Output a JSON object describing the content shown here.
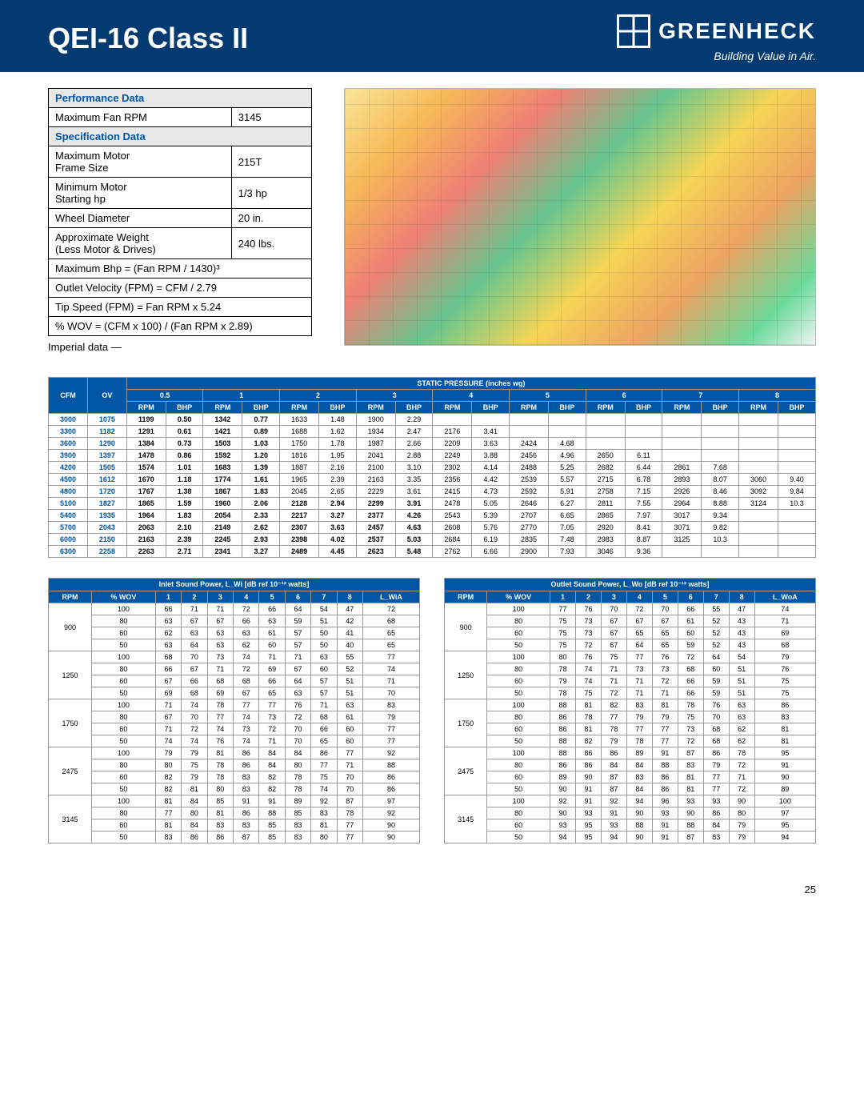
{
  "header": {
    "title": "QEI-16 Class II",
    "brand_name": "GREENHECK",
    "brand_tag": "Building Value in Air."
  },
  "spec": {
    "perf_hdr": "Performance Data",
    "spec_hdr": "Specification Data",
    "rows_perf": [
      {
        "label": "Maximum Fan RPM",
        "value": "3145"
      }
    ],
    "rows_spec": [
      {
        "label": "Maximum Motor\nFrame Size",
        "value": "215T"
      },
      {
        "label": "Minimum Motor\nStarting hp",
        "value": "1/3 hp"
      },
      {
        "label": "Wheel Diameter",
        "value": "20 in."
      },
      {
        "label": "Approximate Weight\n(Less Motor & Drives)",
        "value": "240 lbs."
      }
    ],
    "formulas": [
      "Maximum Bhp = (Fan RPM / 1430)³",
      "Outlet Velocity (FPM) = CFM / 2.79",
      "Tip Speed (FPM) = Fan RPM x 5.24",
      "% WOV = (CFM x 100) / (Fan RPM x 2.89)"
    ],
    "imperial": "Imperial data —"
  },
  "perf_table": {
    "title": "STATIC PRESSURE (inches wg)",
    "col1": "CFM",
    "col2": "OV",
    "pressures": [
      "0.5",
      "1",
      "2",
      "3",
      "4",
      "5",
      "6",
      "7",
      "8"
    ],
    "sub": [
      "RPM",
      "BHP"
    ],
    "rows": [
      {
        "cfm": "3000",
        "ov": "1075",
        "cells": [
          "1199",
          "0.50",
          "1342",
          "0.77",
          "1633",
          "1.48",
          "1900",
          "2.29",
          "",
          "",
          "",
          "",
          "",
          "",
          "",
          "",
          "",
          ""
        ]
      },
      {
        "cfm": "3300",
        "ov": "1182",
        "cells": [
          "1291",
          "0.61",
          "1421",
          "0.89",
          "1688",
          "1.62",
          "1934",
          "2.47",
          "2176",
          "3.41",
          "",
          "",
          "",
          "",
          "",
          "",
          "",
          ""
        ]
      },
      {
        "cfm": "3600",
        "ov": "1290",
        "cells": [
          "1384",
          "0.73",
          "1503",
          "1.03",
          "1750",
          "1.78",
          "1987",
          "2.66",
          "2209",
          "3.63",
          "2424",
          "4.68",
          "",
          "",
          "",
          "",
          "",
          ""
        ]
      },
      {
        "cfm": "3900",
        "ov": "1397",
        "cells": [
          "1478",
          "0.86",
          "1592",
          "1.20",
          "1816",
          "1.95",
          "2041",
          "2.88",
          "2249",
          "3.88",
          "2456",
          "4.96",
          "2650",
          "6.11",
          "",
          "",
          "",
          ""
        ]
      },
      {
        "cfm": "4200",
        "ov": "1505",
        "cells": [
          "1574",
          "1.01",
          "1683",
          "1.39",
          "1887",
          "2.16",
          "2100",
          "3.10",
          "2302",
          "4.14",
          "2488",
          "5.25",
          "2682",
          "6.44",
          "2861",
          "7.68",
          "",
          ""
        ]
      },
      {
        "cfm": "4500",
        "ov": "1612",
        "cells": [
          "1670",
          "1.18",
          "1774",
          "1.61",
          "1965",
          "2.39",
          "2163",
          "3.35",
          "2356",
          "4.42",
          "2539",
          "5.57",
          "2715",
          "6.78",
          "2893",
          "8.07",
          "3060",
          "9.40"
        ]
      },
      {
        "cfm": "4800",
        "ov": "1720",
        "cells": [
          "1767",
          "1.38",
          "1867",
          "1.83",
          "2045",
          "2.65",
          "2229",
          "3.61",
          "2415",
          "4.73",
          "2592",
          "5.91",
          "2758",
          "7.15",
          "2926",
          "8.46",
          "3092",
          "9.84"
        ]
      },
      {
        "cfm": "5100",
        "ov": "1827",
        "cells": [
          "1865",
          "1.59",
          "1960",
          "2.06",
          "2128",
          "2.94",
          "2299",
          "3.91",
          "2478",
          "5.05",
          "2646",
          "6.27",
          "2811",
          "7.55",
          "2964",
          "8.88",
          "3124",
          "10.3"
        ]
      },
      {
        "cfm": "5400",
        "ov": "1935",
        "cells": [
          "1964",
          "1.83",
          "2054",
          "2.33",
          "2217",
          "3.27",
          "2377",
          "4.26",
          "2543",
          "5.39",
          "2707",
          "6.65",
          "2865",
          "7.97",
          "3017",
          "9.34",
          "",
          ""
        ]
      },
      {
        "cfm": "5700",
        "ov": "2043",
        "cells": [
          "2063",
          "2.10",
          "2149",
          "2.62",
          "2307",
          "3.63",
          "2457",
          "4.63",
          "2608",
          "5.76",
          "2770",
          "7.05",
          "2920",
          "8.41",
          "3071",
          "9.82",
          "",
          ""
        ]
      },
      {
        "cfm": "6000",
        "ov": "2150",
        "cells": [
          "2163",
          "2.39",
          "2245",
          "2.93",
          "2398",
          "4.02",
          "2537",
          "5.03",
          "2684",
          "6.19",
          "2835",
          "7.48",
          "2983",
          "8.87",
          "3125",
          "10.3",
          "",
          ""
        ]
      },
      {
        "cfm": "6300",
        "ov": "2258",
        "cells": [
          "2263",
          "2.71",
          "2341",
          "3.27",
          "2489",
          "4.45",
          "2623",
          "5.48",
          "2762",
          "6.66",
          "2900",
          "7.93",
          "3046",
          "9.36",
          "",
          "",
          "",
          ""
        ]
      }
    ],
    "bold_through_pressure_index": {
      "3000": 1,
      "3300": 1,
      "3600": 1,
      "3900": 1,
      "4200": 1,
      "4500": 1,
      "4800": 1,
      "5100": 3,
      "5400": 3,
      "5700": 3,
      "6000": 3,
      "6300": 3
    }
  },
  "sound_inlet": {
    "title": "Inlet Sound Power, L_Wi  [dB ref 10⁻¹² watts]",
    "cols": [
      "RPM",
      "% WOV",
      "1",
      "2",
      "3",
      "4",
      "5",
      "6",
      "7",
      "8",
      "L_WiA"
    ],
    "groups": [
      {
        "rpm": "900",
        "rows": [
          [
            "100",
            "66",
            "71",
            "71",
            "72",
            "66",
            "64",
            "54",
            "47",
            "72"
          ],
          [
            "80",
            "63",
            "67",
            "67",
            "66",
            "63",
            "59",
            "51",
            "42",
            "68"
          ],
          [
            "60",
            "62",
            "63",
            "63",
            "63",
            "61",
            "57",
            "50",
            "41",
            "65"
          ],
          [
            "50",
            "63",
            "64",
            "63",
            "62",
            "60",
            "57",
            "50",
            "40",
            "65"
          ]
        ]
      },
      {
        "rpm": "1250",
        "rows": [
          [
            "100",
            "68",
            "70",
            "73",
            "74",
            "71",
            "71",
            "63",
            "55",
            "77"
          ],
          [
            "80",
            "66",
            "67",
            "71",
            "72",
            "69",
            "67",
            "60",
            "52",
            "74"
          ],
          [
            "60",
            "67",
            "66",
            "68",
            "68",
            "66",
            "64",
            "57",
            "51",
            "71"
          ],
          [
            "50",
            "69",
            "68",
            "69",
            "67",
            "65",
            "63",
            "57",
            "51",
            "70"
          ]
        ]
      },
      {
        "rpm": "1750",
        "rows": [
          [
            "100",
            "71",
            "74",
            "78",
            "77",
            "77",
            "76",
            "71",
            "63",
            "83"
          ],
          [
            "80",
            "67",
            "70",
            "77",
            "74",
            "73",
            "72",
            "68",
            "61",
            "79"
          ],
          [
            "60",
            "71",
            "72",
            "74",
            "73",
            "72",
            "70",
            "66",
            "60",
            "77"
          ],
          [
            "50",
            "74",
            "74",
            "76",
            "74",
            "71",
            "70",
            "65",
            "60",
            "77"
          ]
        ]
      },
      {
        "rpm": "2475",
        "rows": [
          [
            "100",
            "79",
            "79",
            "81",
            "86",
            "84",
            "84",
            "86",
            "77",
            "92"
          ],
          [
            "80",
            "80",
            "75",
            "78",
            "86",
            "84",
            "80",
            "77",
            "71",
            "88"
          ],
          [
            "60",
            "82",
            "79",
            "78",
            "83",
            "82",
            "78",
            "75",
            "70",
            "86"
          ],
          [
            "50",
            "82",
            "81",
            "80",
            "83",
            "82",
            "78",
            "74",
            "70",
            "86"
          ]
        ]
      },
      {
        "rpm": "3145",
        "rows": [
          [
            "100",
            "81",
            "84",
            "85",
            "91",
            "91",
            "89",
            "92",
            "87",
            "97"
          ],
          [
            "80",
            "77",
            "80",
            "81",
            "86",
            "88",
            "85",
            "83",
            "78",
            "92"
          ],
          [
            "60",
            "81",
            "84",
            "83",
            "83",
            "85",
            "83",
            "81",
            "77",
            "90"
          ],
          [
            "50",
            "83",
            "86",
            "86",
            "87",
            "85",
            "83",
            "80",
            "77",
            "90"
          ]
        ]
      }
    ]
  },
  "sound_outlet": {
    "title": "Outlet Sound Power, L_Wo  [dB ref 10⁻¹² watts]",
    "cols": [
      "RPM",
      "% WOV",
      "1",
      "2",
      "3",
      "4",
      "5",
      "6",
      "7",
      "8",
      "L_WoA"
    ],
    "groups": [
      {
        "rpm": "900",
        "rows": [
          [
            "100",
            "77",
            "76",
            "70",
            "72",
            "70",
            "66",
            "55",
            "47",
            "74"
          ],
          [
            "80",
            "75",
            "73",
            "67",
            "67",
            "67",
            "61",
            "52",
            "43",
            "71"
          ],
          [
            "60",
            "75",
            "73",
            "67",
            "65",
            "65",
            "60",
            "52",
            "43",
            "69"
          ],
          [
            "50",
            "75",
            "72",
            "67",
            "64",
            "65",
            "59",
            "52",
            "43",
            "68"
          ]
        ]
      },
      {
        "rpm": "1250",
        "rows": [
          [
            "100",
            "80",
            "76",
            "75",
            "77",
            "76",
            "72",
            "64",
            "54",
            "79"
          ],
          [
            "80",
            "78",
            "74",
            "71",
            "73",
            "73",
            "68",
            "60",
            "51",
            "76"
          ],
          [
            "60",
            "79",
            "74",
            "71",
            "71",
            "72",
            "66",
            "59",
            "51",
            "75"
          ],
          [
            "50",
            "78",
            "75",
            "72",
            "71",
            "71",
            "66",
            "59",
            "51",
            "75"
          ]
        ]
      },
      {
        "rpm": "1750",
        "rows": [
          [
            "100",
            "88",
            "81",
            "82",
            "83",
            "81",
            "78",
            "76",
            "63",
            "86"
          ],
          [
            "80",
            "86",
            "78",
            "77",
            "79",
            "79",
            "75",
            "70",
            "63",
            "83"
          ],
          [
            "60",
            "86",
            "81",
            "78",
            "77",
            "77",
            "73",
            "68",
            "62",
            "81"
          ],
          [
            "50",
            "88",
            "82",
            "79",
            "78",
            "77",
            "72",
            "68",
            "62",
            "81"
          ]
        ]
      },
      {
        "rpm": "2475",
        "rows": [
          [
            "100",
            "88",
            "86",
            "86",
            "89",
            "91",
            "87",
            "86",
            "78",
            "95"
          ],
          [
            "80",
            "86",
            "86",
            "84",
            "84",
            "88",
            "83",
            "79",
            "72",
            "91"
          ],
          [
            "60",
            "89",
            "90",
            "87",
            "83",
            "86",
            "81",
            "77",
            "71",
            "90"
          ],
          [
            "50",
            "90",
            "91",
            "87",
            "84",
            "86",
            "81",
            "77",
            "72",
            "89"
          ]
        ]
      },
      {
        "rpm": "3145",
        "rows": [
          [
            "100",
            "92",
            "91",
            "92",
            "94",
            "96",
            "93",
            "93",
            "90",
            "100"
          ],
          [
            "80",
            "90",
            "93",
            "91",
            "90",
            "93",
            "90",
            "86",
            "80",
            "97"
          ],
          [
            "60",
            "93",
            "95",
            "93",
            "88",
            "91",
            "88",
            "84",
            "79",
            "95"
          ],
          [
            "50",
            "94",
            "95",
            "94",
            "90",
            "91",
            "87",
            "83",
            "79",
            "94"
          ]
        ]
      }
    ]
  },
  "page_number": "25"
}
